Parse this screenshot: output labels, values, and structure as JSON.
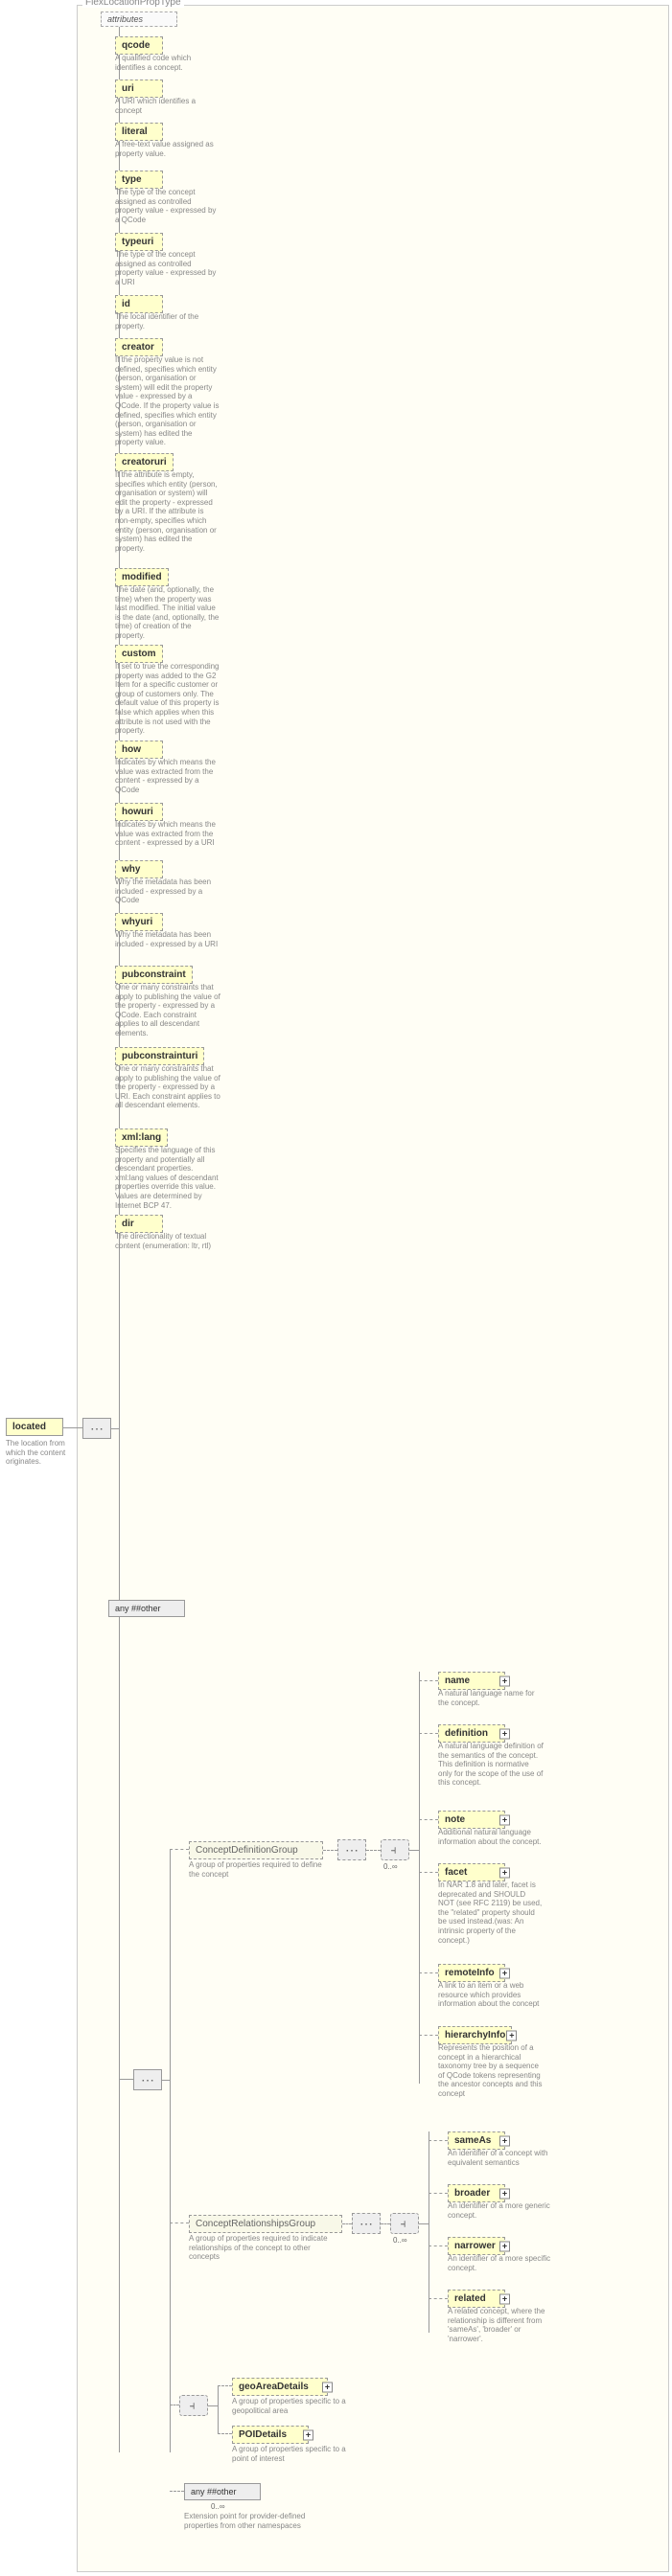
{
  "root": {
    "label": "FlexLocationPropType"
  },
  "located": {
    "label": "located",
    "desc": "The location from which the content originates."
  },
  "attributes_box": {
    "label": "attributes"
  },
  "attributes": [
    {
      "name": "qcode",
      "desc": "A qualified code which identifies a concept."
    },
    {
      "name": "uri",
      "desc": "A URI which identifies a concept"
    },
    {
      "name": "literal",
      "desc": "A free-text value assigned as property value."
    },
    {
      "name": "type",
      "desc": "The type of the concept assigned as controlled property value - expressed by a QCode"
    },
    {
      "name": "typeuri",
      "desc": "The type of the concept assigned as controlled property value - expressed by a URI"
    },
    {
      "name": "id",
      "desc": "The local identifier of the property."
    },
    {
      "name": "creator",
      "desc": "If the property value is not defined, specifies which entity (person, organisation or system) will edit the property value - expressed by a QCode. If the property value is defined, specifies which entity (person, organisation or system) has edited the property value."
    },
    {
      "name": "creatoruri",
      "desc": "If the attribute is empty, specifies which entity (person, organisation or system) will edit the property - expressed by a URI. If the attribute is non-empty, specifies which entity (person, organisation or system) has edited the property."
    },
    {
      "name": "modified",
      "desc": "The date (and, optionally, the time) when the property was last modified. The initial value is the date (and, optionally, the time) of creation of the property."
    },
    {
      "name": "custom",
      "desc": "If set to true the corresponding property was added to the G2 Item for a specific customer or group of customers only. The default value of this property is false which applies when this attribute is not used with the property."
    },
    {
      "name": "how",
      "desc": "Indicates by which means the value was extracted from the content - expressed by a QCode"
    },
    {
      "name": "howuri",
      "desc": "Indicates by which means the value was extracted from the content - expressed by a URI"
    },
    {
      "name": "why",
      "desc": "Why the metadata has been included - expressed by a QCode"
    },
    {
      "name": "whyuri",
      "desc": "Why the metadata has been included - expressed by a URI"
    },
    {
      "name": "pubconstraint",
      "desc": "One or many constraints that apply to publishing the value of the property - expressed by a QCode. Each constraint applies to all descendant elements."
    },
    {
      "name": "pubconstrainturi",
      "desc": "One or many constraints that apply to publishing the value of the property - expressed by a URI. Each constraint applies to all descendant elements."
    },
    {
      "name": "xml:lang",
      "desc": "Specifies the language of this property and potentially all descendant properties. xml:lang values of descendant properties override this value. Values are determined by Internet BCP 47."
    },
    {
      "name": "dir",
      "desc": "The directionality of textual content (enumeration: ltr, rtl)"
    }
  ],
  "any_other_1": {
    "label": "any ##other"
  },
  "groups": {
    "cdg": {
      "label": "ConceptDefinitionGroup",
      "desc": "A group of properties required to define the concept"
    },
    "crg": {
      "label": "ConceptRelationshipsGroup",
      "desc": "A group of properties required to indicate relationships of the concept to other concepts"
    },
    "gad": {
      "label": "geoAreaDetails",
      "desc": "A group of properties specific to a geopolitical area"
    },
    "poi": {
      "label": "POIDetails",
      "desc": "A group of properties specific to a point of interest"
    },
    "any2": {
      "label": "any ##other",
      "desc": "Extension point for provider-defined properties from other namespaces"
    }
  },
  "cdg_children": [
    {
      "name": "name",
      "desc": "A natural language name for the concept."
    },
    {
      "name": "definition",
      "desc": "A natural language definition of the semantics of the concept. This definition is normative only for the scope of the use of this concept."
    },
    {
      "name": "note",
      "desc": "Additional natural language information about the concept."
    },
    {
      "name": "facet",
      "desc": "In NAR 1.8 and later, facet is deprecated and SHOULD NOT (see RFC 2119) be used, the \"related\" property should be used instead.(was: An intrinsic property of the concept.)"
    },
    {
      "name": "remoteInfo",
      "desc": "A link to an item or a web resource which provides information about the concept"
    },
    {
      "name": "hierarchyInfo",
      "desc": "Represents the position of a concept in a hierarchical taxonomy tree by a sequence of QCode tokens representing the ancestor concepts and this concept"
    }
  ],
  "crg_children": [
    {
      "name": "sameAs",
      "desc": "An identifier of a concept with equivalent semantics"
    },
    {
      "name": "broader",
      "desc": "An identifier of a more generic concept."
    },
    {
      "name": "narrower",
      "desc": "An identifier of a more specific concept."
    },
    {
      "name": "related",
      "desc": "A related concept, where the relationship is different from 'sameAs', 'broader' or 'narrower'."
    }
  ],
  "cardinality": {
    "zero_inf": "0..∞"
  },
  "colors": {
    "bg": "#ffffff",
    "box_bg": "#ffffcc",
    "border": "#999999",
    "text_gray": "#888888"
  }
}
